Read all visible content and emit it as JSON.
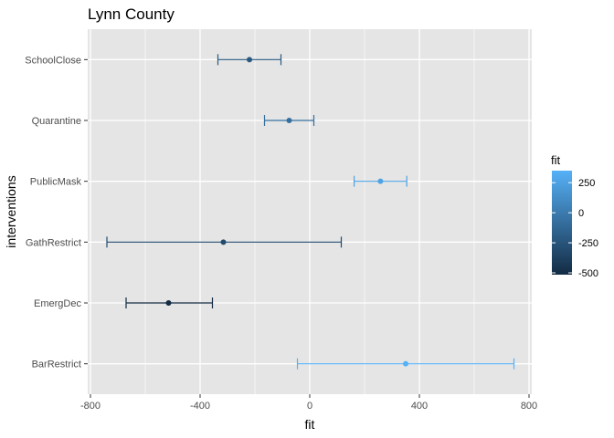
{
  "chart_data": {
    "type": "errorbar",
    "title": "Lynn County",
    "xlabel": "fit",
    "ylabel": "interventions",
    "xlim": [
      -810,
      810
    ],
    "x_ticks": [
      -800,
      -400,
      0,
      400,
      800
    ],
    "x_tick_labels": [
      "-800",
      "-400",
      "0",
      "400",
      "800"
    ],
    "categories": [
      "SchoolClose",
      "Quarantine",
      "PublicMask",
      "GathRestrict",
      "EmergDec",
      "BarRestrict"
    ],
    "points": [
      {
        "category": "SchoolClose",
        "fit": -220,
        "lower": -335,
        "upper": -105
      },
      {
        "category": "Quarantine",
        "fit": -75,
        "lower": -165,
        "upper": 15
      },
      {
        "category": "PublicMask",
        "fit": 258,
        "lower": 162,
        "upper": 354
      },
      {
        "category": "GathRestrict",
        "fit": -315,
        "lower": -740,
        "upper": 115
      },
      {
        "category": "EmergDec",
        "fit": -515,
        "lower": -670,
        "upper": -355
      },
      {
        "category": "BarRestrict",
        "fit": 350,
        "lower": -45,
        "upper": 745
      }
    ],
    "color_scale": {
      "title": "fit",
      "low_color": "#132B43",
      "high_color": "#56B1F7",
      "domain": [
        -515,
        350
      ],
      "ticks": [
        250,
        0,
        -250,
        -500
      ],
      "tick_labels": [
        "250",
        "0",
        "-250",
        "-500"
      ]
    },
    "panel_background": "#E5E5E5",
    "grid_color": "#FFFFFF",
    "grid": true,
    "legend_position": "right"
  }
}
